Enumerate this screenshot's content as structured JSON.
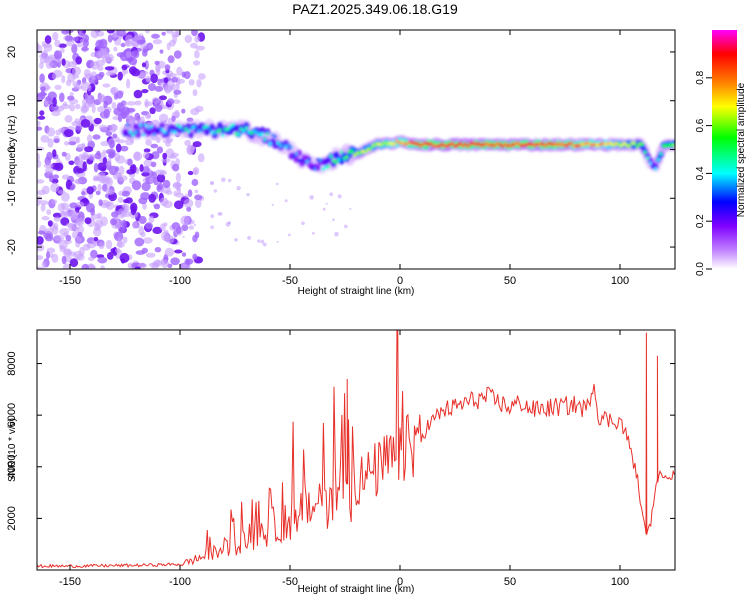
{
  "chart_data": [
    {
      "type": "heatmap",
      "title": "PAZ1.2025.349.06.18.G19",
      "xlabel": "Height of straight line (km)",
      "ylabel": "Frequency (Hz)",
      "xlim": [
        -165,
        125
      ],
      "ylim": [
        -24.5,
        24.5
      ],
      "x_ticks": [
        -150,
        -100,
        -50,
        0,
        50,
        100
      ],
      "y_ticks": [
        20,
        10,
        0,
        -10,
        -20
      ],
      "colorbar": {
        "label": "Normalized spectral amplitude",
        "range": [
          0.0,
          1.0
        ],
        "ticks": [
          0.0,
          0.2,
          0.4,
          0.6,
          0.8
        ],
        "tick_labels": [
          "0.0",
          "0.2",
          "0.4",
          "0.6",
          "0.8"
        ],
        "colormap": [
          "#ffffff",
          "#c080ff",
          "#8000ff",
          "#0000ff",
          "#00ffff",
          "#00ff00",
          "#ffff00",
          "#ff8000",
          "#ff0000",
          "#ff00ff"
        ]
      },
      "ridge": {
        "x": [
          -125,
          -110,
          -100,
          -90,
          -80,
          -70,
          -60,
          -50,
          -45,
          -40,
          -35,
          -30,
          -25,
          -20,
          -10,
          0,
          10,
          30,
          50,
          70,
          90,
          100,
          105,
          110,
          113,
          116,
          120,
          125
        ],
        "frequency": [
          4,
          4,
          4,
          4,
          4,
          4,
          2.5,
          0,
          -2,
          -3,
          -3,
          -2,
          -1,
          -1,
          1,
          1.5,
          1,
          1,
          1,
          1,
          1,
          1,
          1,
          1,
          -2,
          -4,
          1,
          1
        ],
        "amplitude": [
          0.35,
          0.35,
          0.4,
          0.4,
          0.45,
          0.45,
          0.4,
          0.35,
          0.3,
          0.3,
          0.35,
          0.45,
          0.55,
          0.6,
          0.65,
          0.75,
          0.85,
          0.85,
          0.85,
          0.85,
          0.75,
          0.65,
          0.6,
          0.55,
          0.35,
          0.35,
          0.6,
          0.6
        ]
      }
    },
    {
      "type": "line",
      "xlabel": "Height of straight line (km)",
      "ylabel": "SNR (10 * v/v)",
      "xlim": [
        -165,
        125
      ],
      "ylim": [
        0,
        9300
      ],
      "x_ticks": [
        -150,
        -100,
        -50,
        0,
        50,
        100
      ],
      "y_ticks": [
        2000,
        4000,
        6000,
        8000
      ],
      "color": "#e8302a",
      "series": [
        {
          "x": [
            -165,
            -150,
            -120,
            -100,
            -95,
            -90,
            -85,
            -80,
            -75,
            -70,
            -65,
            -60,
            -55,
            -50,
            -45,
            -40,
            -35,
            -30,
            -25,
            -20,
            -15,
            -10,
            -5,
            0,
            5,
            10,
            15,
            20,
            25,
            30,
            40,
            50,
            55,
            60,
            70,
            80,
            85,
            88,
            90,
            95,
            100,
            103,
            105,
            108,
            110,
            112,
            114,
            116,
            118,
            120,
            125
          ],
          "y": [
            150,
            150,
            180,
            220,
            350,
            500,
            650,
            800,
            1000,
            1200,
            1400,
            1600,
            1800,
            2000,
            2200,
            2500,
            2800,
            3000,
            3300,
            3400,
            3600,
            3900,
            4200,
            4400,
            4800,
            5300,
            5800,
            6200,
            6300,
            6500,
            6700,
            6300,
            6500,
            6200,
            6300,
            6400,
            6200,
            7400,
            6000,
            5800,
            5800,
            5200,
            4600,
            3500,
            2200,
            1400,
            1800,
            3200,
            3600,
            3800,
            3600
          ]
        }
      ],
      "spikes": [
        {
          "x": -24,
          "y": 7400
        },
        {
          "x": 112,
          "y": 9200
        },
        {
          "x": 117,
          "y": 8300
        }
      ]
    }
  ]
}
